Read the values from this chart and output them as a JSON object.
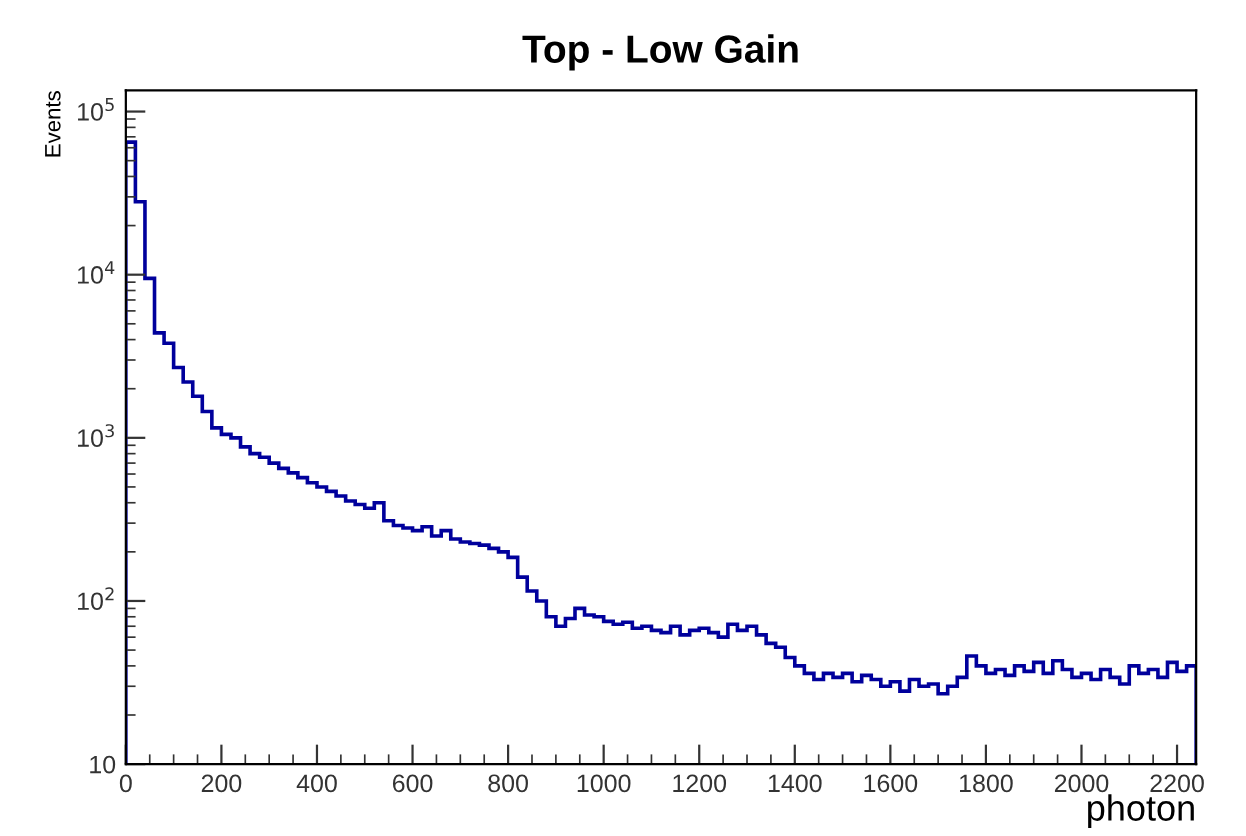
{
  "chart_data": {
    "type": "histogram",
    "title": "Top - Low Gain",
    "xlabel": "photon",
    "ylabel": "Events",
    "bins": [
      0,
      20,
      40,
      60,
      80,
      100,
      120,
      140,
      160,
      180,
      200,
      220,
      240,
      260,
      280,
      300,
      320,
      340,
      360,
      380,
      400,
      420,
      440,
      460,
      480,
      500,
      520,
      540,
      560,
      580,
      600,
      620,
      640,
      660,
      680,
      700,
      720,
      740,
      760,
      780,
      800,
      820,
      840,
      860,
      880,
      900,
      920,
      940,
      960,
      980,
      1000,
      1020,
      1040,
      1060,
      1080,
      1100,
      1120,
      1140,
      1160,
      1180,
      1200,
      1220,
      1240,
      1260,
      1280,
      1300,
      1320,
      1340,
      1360,
      1380,
      1400,
      1420,
      1440,
      1460,
      1480,
      1500,
      1520,
      1540,
      1560,
      1580,
      1600,
      1620,
      1640,
      1660,
      1680,
      1700,
      1720,
      1740,
      1760,
      1780,
      1800,
      1820,
      1840,
      1860,
      1880,
      1900,
      1920,
      1940,
      1960,
      1980,
      2000,
      2020,
      2040,
      2060,
      2080,
      2100,
      2120,
      2140,
      2160,
      2180,
      2200,
      2220,
      2240
    ],
    "values": [
      65000,
      28000,
      9500,
      4400,
      3800,
      2700,
      2200,
      1800,
      1450,
      1150,
      1050,
      1000,
      880,
      800,
      760,
      700,
      650,
      610,
      570,
      530,
      500,
      470,
      440,
      410,
      390,
      370,
      400,
      310,
      290,
      280,
      270,
      285,
      250,
      270,
      240,
      230,
      225,
      220,
      210,
      200,
      185,
      140,
      115,
      100,
      80,
      70,
      78,
      90,
      82,
      80,
      75,
      72,
      74,
      68,
      70,
      66,
      64,
      70,
      62,
      66,
      68,
      64,
      60,
      72,
      66,
      70,
      62,
      55,
      52,
      45,
      40,
      36,
      33,
      36,
      34,
      36,
      32,
      35,
      33,
      30,
      32,
      28,
      33,
      30,
      31,
      27,
      30,
      34,
      46,
      40,
      36,
      38,
      35,
      40,
      37,
      42,
      36,
      43,
      38,
      34,
      36,
      33,
      38,
      34,
      31,
      40,
      36,
      38,
      34,
      42,
      37,
      40
    ],
    "color": "#00009c",
    "log": "y",
    "grid": false,
    "xlim": [
      0,
      2240
    ],
    "xticks": [
      0,
      200,
      400,
      600,
      800,
      1000,
      1200,
      1400,
      1600,
      1800,
      2000,
      2200
    ],
    "ylim": [
      10,
      135000
    ],
    "yticks": [
      10,
      {
        "value": 100,
        "label": "10$^{2}$"
      },
      {
        "value": 1000,
        "label": "10$^{3}$"
      },
      {
        "value": 10000,
        "label": "10$^{4}$"
      },
      {
        "value": 100000,
        "label": "10$^{5}$"
      }
    ]
  }
}
